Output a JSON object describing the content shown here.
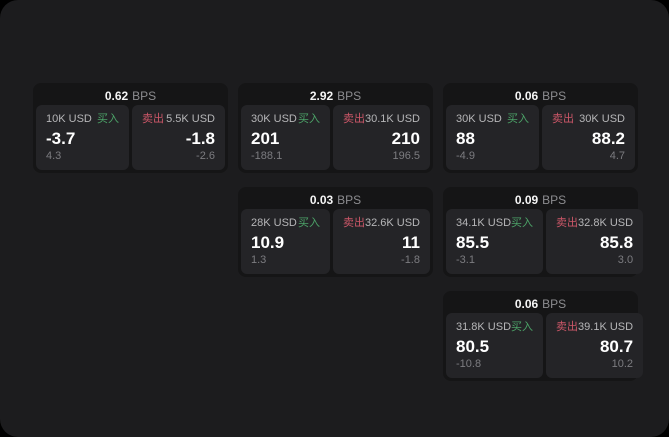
{
  "colors": {
    "buy_accent": "#4ca368",
    "sell_accent": "#cc5768",
    "window_background": "#1c1c1e",
    "card_background": "#151516",
    "panel_background": "#242427"
  },
  "cards": [
    {
      "row": 1,
      "col": 1,
      "bps": "0.62",
      "bps_unit": "BPS",
      "buy": {
        "amount": "10K USD",
        "label": "买入",
        "value": "-3.7",
        "delta": "4.3"
      },
      "sell": {
        "label": "卖出",
        "amount": "5.5K USD",
        "value": "-1.8",
        "delta": "-2.6"
      }
    },
    {
      "row": 1,
      "col": 2,
      "bps": "2.92",
      "bps_unit": "BPS",
      "buy": {
        "amount": "30K USD",
        "label": "买入",
        "value": "201",
        "delta": "-188.1"
      },
      "sell": {
        "label": "卖出",
        "amount": "30.1K USD",
        "value": "210",
        "delta": "196.5"
      }
    },
    {
      "row": 1,
      "col": 3,
      "bps": "0.06",
      "bps_unit": "BPS",
      "buy": {
        "amount": "30K USD",
        "label": "买入",
        "value": "88",
        "delta": "-4.9"
      },
      "sell": {
        "label": "卖出",
        "amount": "30K USD",
        "value": "88.2",
        "delta": "4.7"
      }
    },
    {
      "row": 2,
      "col": 2,
      "bps": "0.03",
      "bps_unit": "BPS",
      "buy": {
        "amount": "28K USD",
        "label": "买入",
        "value": "10.9",
        "delta": "1.3"
      },
      "sell": {
        "label": "卖出",
        "amount": "32.6K USD",
        "value": "11",
        "delta": "-1.8"
      }
    },
    {
      "row": 2,
      "col": 3,
      "bps": "0.09",
      "bps_unit": "BPS",
      "buy": {
        "amount": "34.1K USD",
        "label": "买入",
        "value": "85.5",
        "delta": "-3.1"
      },
      "sell": {
        "label": "卖出",
        "amount": "32.8K USD",
        "value": "85.8",
        "delta": "3.0"
      }
    },
    {
      "row": 3,
      "col": 3,
      "bps": "0.06",
      "bps_unit": "BPS",
      "buy": {
        "amount": "31.8K USD",
        "label": "买入",
        "value": "80.5",
        "delta": "-10.8"
      },
      "sell": {
        "label": "卖出",
        "amount": "39.1K USD",
        "value": "80.7",
        "delta": "10.2"
      }
    }
  ]
}
